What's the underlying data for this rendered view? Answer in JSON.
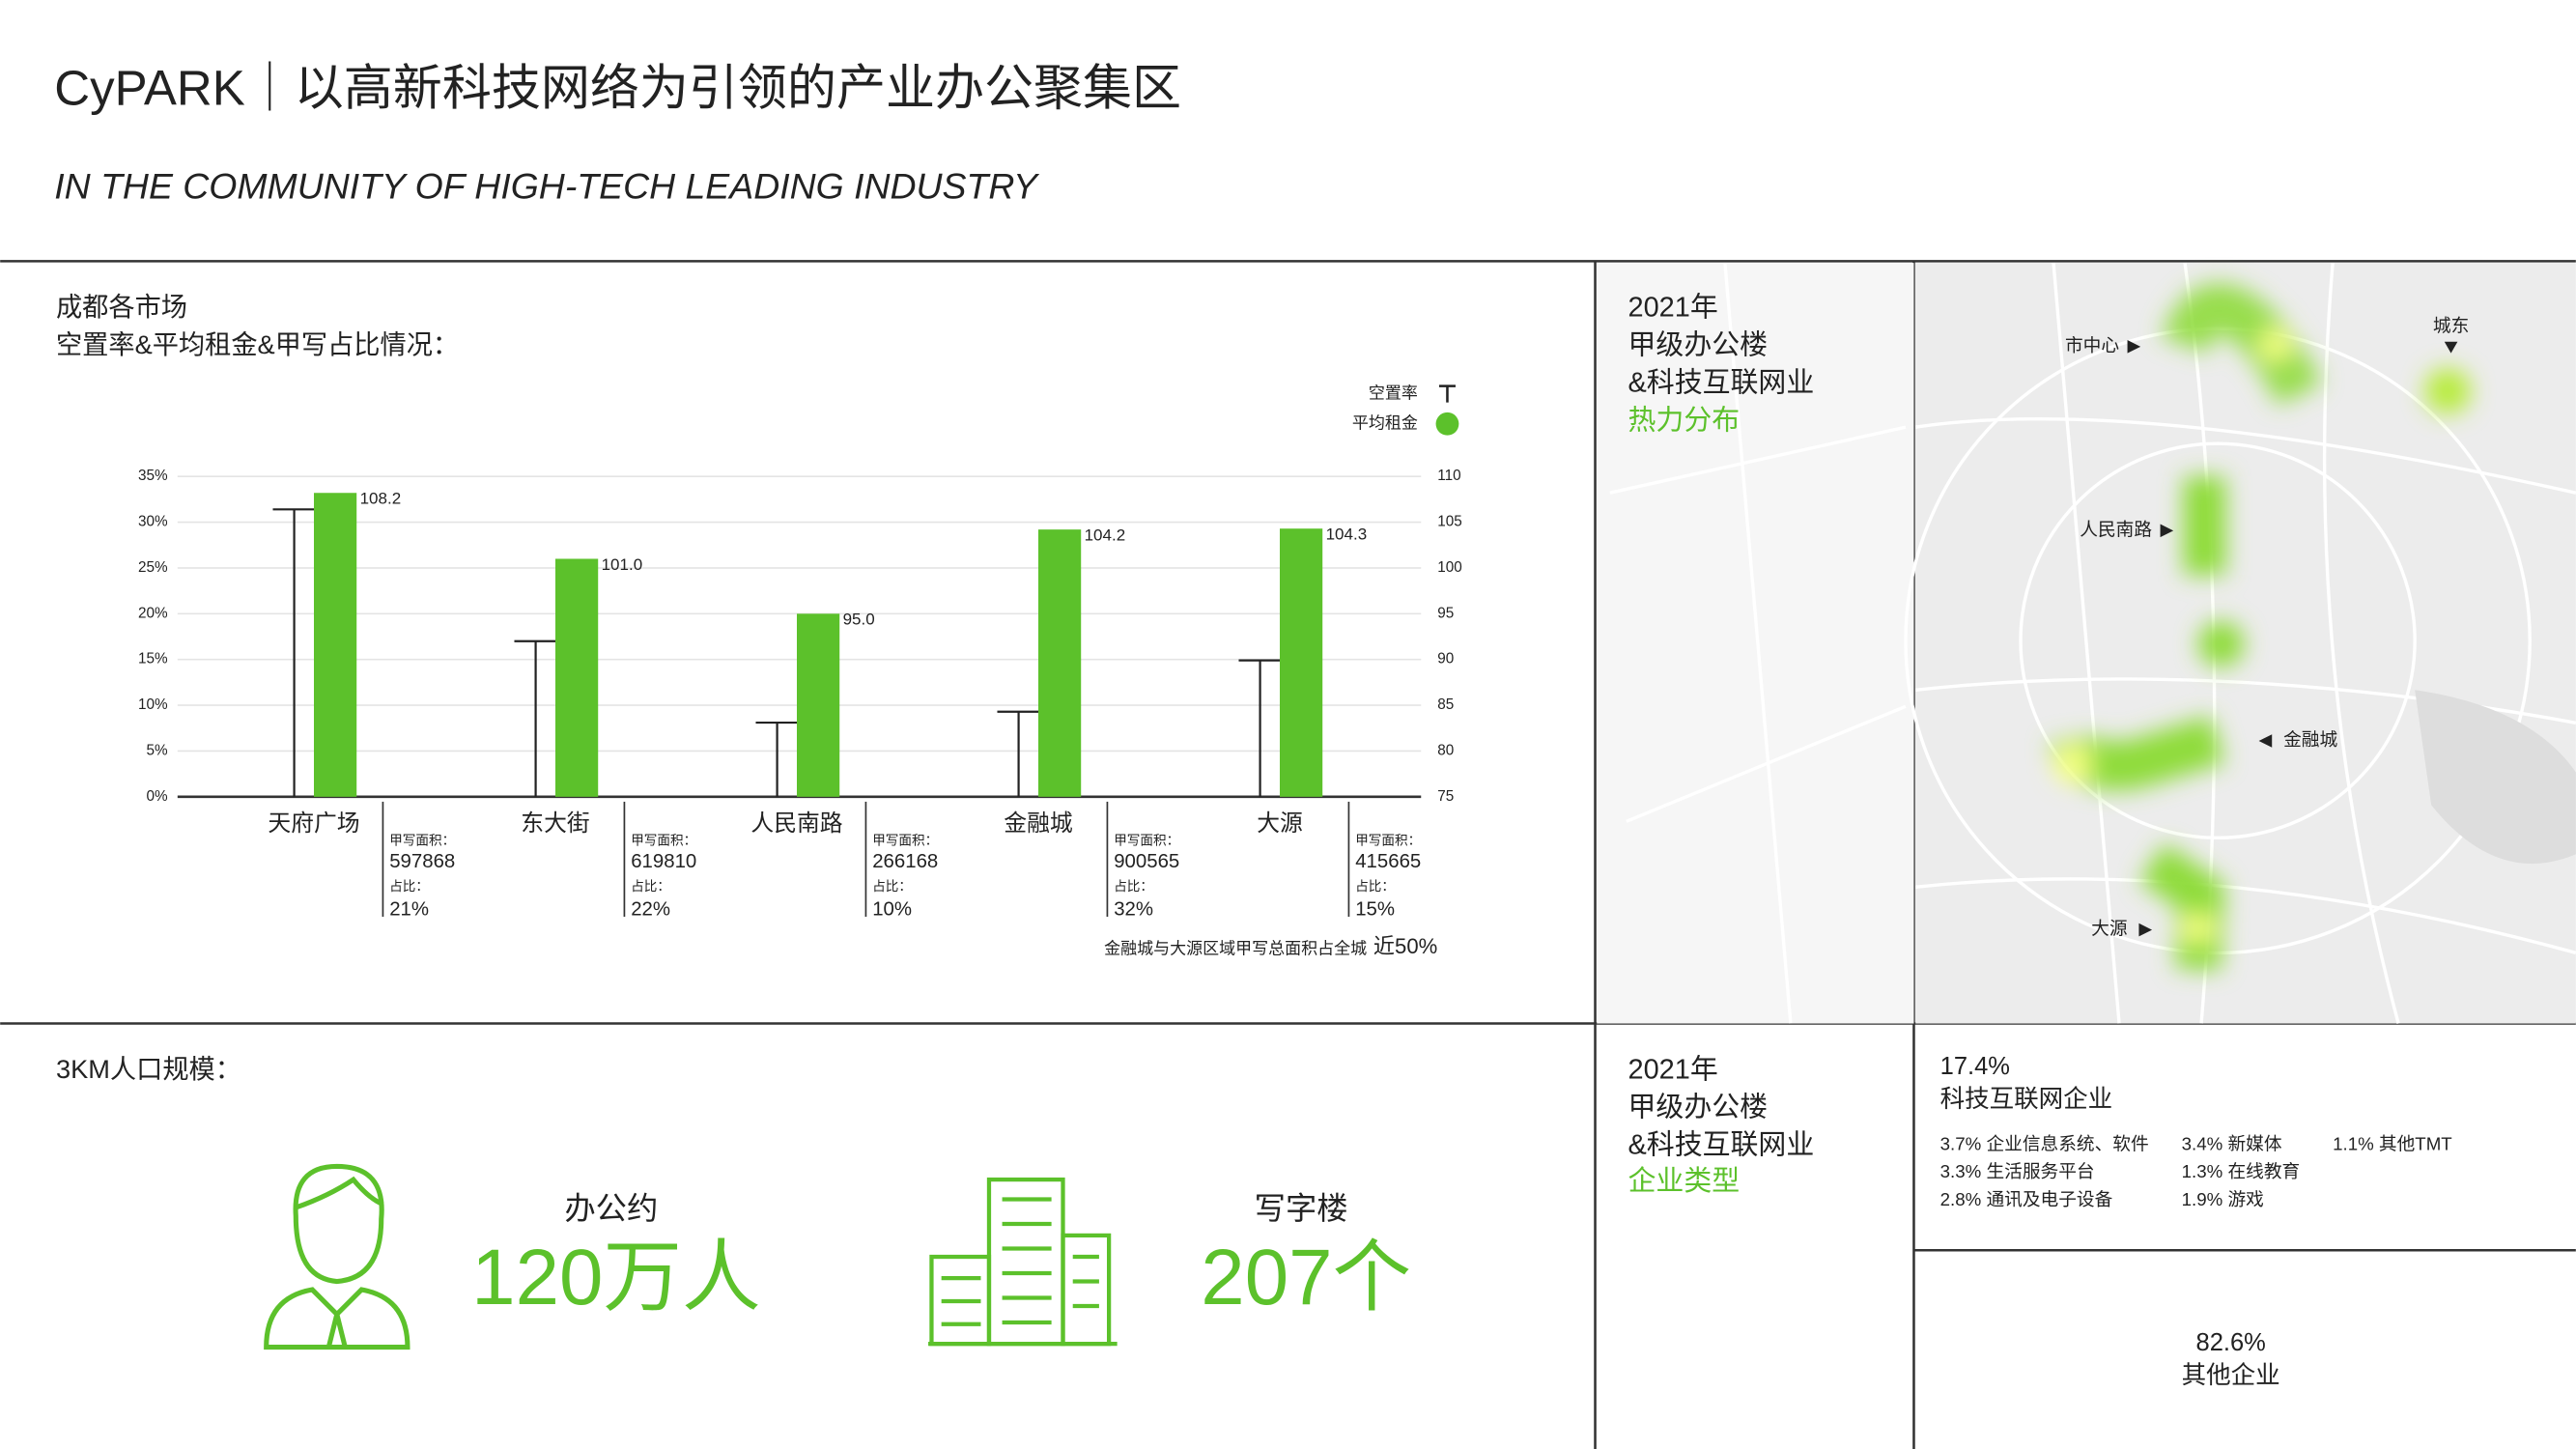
{
  "header": {
    "title": "CyPARK｜以高新科技网络为引领的产业办公聚集区",
    "subtitle": "IN THE COMMUNITY OF HIGH-TECH LEADING INDUSTRY"
  },
  "chart_data": {
    "type": "bar",
    "title": "成都各市场",
    "subtitle": "空置率&平均租金&甲写占比情况：",
    "categories": [
      "天府广场",
      "东大街",
      "人民南路",
      "金融城",
      "大源"
    ],
    "series": [
      {
        "name": "空置率",
        "color": "#222222",
        "values": [
          31.4,
          17.0,
          8.1,
          9.3,
          14.9
        ]
      },
      {
        "name": "平均租金",
        "color": "#5cc12b",
        "axis": "y2",
        "values": [
          108.2,
          101.0,
          95.0,
          104.2,
          104.3
        ],
        "value_labels": [
          "108.2",
          "101.0",
          "95.0",
          "104.2",
          "104.3"
        ]
      }
    ],
    "ylim": [
      0,
      35
    ],
    "yticks": [
      {
        "value": 0,
        "label": "0%"
      },
      {
        "value": 5,
        "label": "5%"
      },
      {
        "value": 10,
        "label": "10%"
      },
      {
        "value": 15,
        "label": "15%"
      },
      {
        "value": 20,
        "label": "20%"
      },
      {
        "value": 25,
        "label": "25%"
      },
      {
        "value": 30,
        "label": "30%"
      },
      {
        "value": 35,
        "label": "35%"
      }
    ],
    "y2lim": [
      75,
      110
    ],
    "y2ticks": [
      75,
      80,
      85,
      90,
      95,
      100,
      105,
      110
    ],
    "grid": true,
    "legend": "upper right",
    "areas": [
      {
        "area_label": "甲写面积：",
        "area": "597868",
        "share_label": "占比：",
        "share": "21%",
        "highlight": false
      },
      {
        "area_label": "甲写面积：",
        "area": "619810",
        "share_label": "占比：",
        "share": "22%",
        "highlight": false
      },
      {
        "area_label": "甲写面积：",
        "area": "266168",
        "share_label": "占比：",
        "share": "10%",
        "highlight": false
      },
      {
        "area_label": "甲写面积：",
        "area": "900565",
        "share_label": "占比：",
        "share": "32%",
        "highlight": true
      },
      {
        "area_label": "甲写面积：",
        "area": "415665",
        "share_label": "占比：",
        "share": "15%",
        "highlight": true
      }
    ],
    "note": "金融城与大源区域甲写总面积占全城",
    "note_highlight": "近50%"
  },
  "heatmap": {
    "year": "2021年",
    "line1": "甲级办公楼",
    "line2": "&科技互联网业",
    "label": "热力分布",
    "places": [
      "市中心",
      "城东",
      "人民南路",
      "金融城",
      "大源"
    ]
  },
  "population": {
    "title": "3KM人口规模：",
    "office_label": "办公约",
    "office_value": "120万人",
    "building_label": "写字楼",
    "building_value": "207个"
  },
  "industry": {
    "year": "2021年",
    "line1": "甲级办公楼",
    "line2": "&科技互联网业",
    "label": "企业类型",
    "tech_share": "17.4%",
    "tech_label": "科技互联网企业",
    "items": [
      "3.7% 企业信息系统、软件",
      "3.4% 新媒体",
      "1.1% 其他TMT",
      "3.3% 生活服务平台",
      "1.3% 在线教育",
      "2.8% 通讯及电子设备",
      "1.9% 游戏"
    ],
    "other_share": "82.6%",
    "other_label": "其他企业"
  }
}
